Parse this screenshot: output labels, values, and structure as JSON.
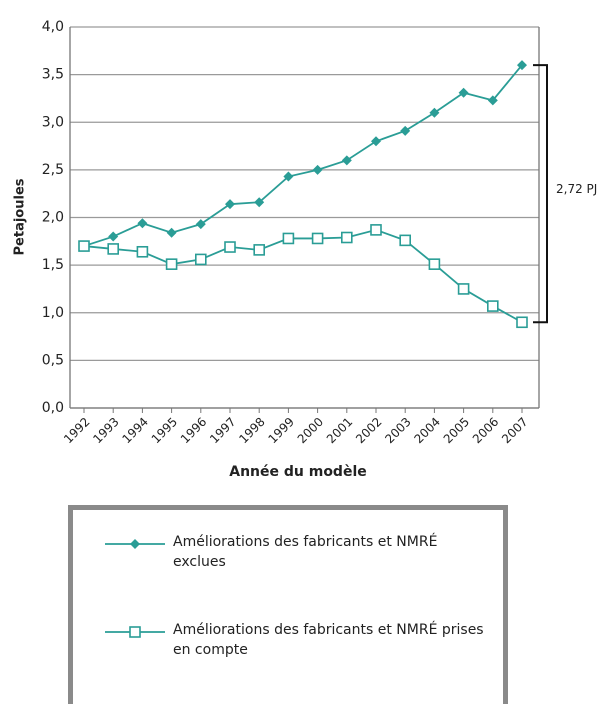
{
  "chart_data": {
    "type": "line",
    "categories": [
      "1992",
      "1993",
      "1994",
      "1995",
      "1996",
      "1997",
      "1998",
      "1999",
      "2000",
      "2001",
      "2002",
      "2003",
      "2004",
      "2005",
      "2006",
      "2007"
    ],
    "series": [
      {
        "name": "Améliorations des fabricants et NMRÉ exclues",
        "color": "#2a9d96",
        "marker": "diamond",
        "values": [
          1.7,
          1.8,
          1.94,
          1.84,
          1.93,
          2.14,
          2.16,
          2.43,
          2.5,
          2.6,
          2.8,
          2.91,
          3.1,
          3.31,
          3.23,
          3.6
        ]
      },
      {
        "name": "Améliorations des fabricants et NMRÉ prises en compte",
        "color": "#2a9d96",
        "marker": "square",
        "values": [
          1.7,
          1.67,
          1.64,
          1.51,
          1.56,
          1.69,
          1.66,
          1.78,
          1.78,
          1.79,
          1.87,
          1.76,
          1.51,
          1.25,
          1.07,
          0.9
        ]
      }
    ],
    "ylabel": "Petajoules",
    "xlabel": "Année du modèle",
    "ylim": [
      0,
      4
    ],
    "yticks": [
      {
        "value": 0,
        "label": "0,0"
      },
      {
        "value": 0.5,
        "label": "0,5"
      },
      {
        "value": 1,
        "label": "1,0"
      },
      {
        "value": 1.5,
        "label": "1,5"
      },
      {
        "value": 2,
        "label": "2,0"
      },
      {
        "value": 2.5,
        "label": "2,5"
      },
      {
        "value": 3,
        "label": "3,0"
      },
      {
        "value": 3.5,
        "label": "3,5"
      },
      {
        "value": 4,
        "label": "4,0"
      }
    ],
    "grid": true,
    "annotation": "2,72 PJ"
  }
}
